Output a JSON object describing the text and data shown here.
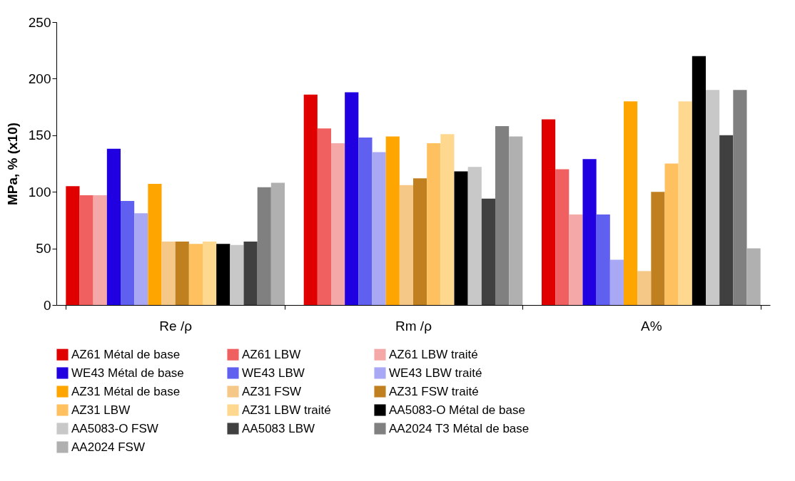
{
  "chart_data": {
    "type": "bar",
    "ylabel": "MPa, % (x10)",
    "categories": [
      "Re /ρ",
      "Rm /ρ",
      "A%"
    ],
    "ylim": [
      0,
      250
    ],
    "yticks": [
      0,
      50,
      100,
      150,
      200,
      250
    ],
    "grid": false,
    "legend": "bottom",
    "series": [
      {
        "name": "AZ61 Métal de base",
        "color": "#e00000",
        "values": [
          105,
          186,
          164
        ]
      },
      {
        "name": "AZ61 LBW",
        "color": "#f06060",
        "values": [
          97,
          156,
          120
        ]
      },
      {
        "name": "AZ61 LBW traité",
        "color": "#f4a8a8",
        "values": [
          97,
          143,
          80
        ]
      },
      {
        "name": "WE43 Métal de base",
        "color": "#2000e0",
        "values": [
          138,
          188,
          129
        ]
      },
      {
        "name": "WE43 LBW",
        "color": "#6060f0",
        "values": [
          92,
          148,
          80
        ]
      },
      {
        "name": "WE43 LBW traité",
        "color": "#a8a8f4",
        "values": [
          81,
          135,
          40
        ]
      },
      {
        "name": "AZ31 Métal de base",
        "color": "#ffa500",
        "values": [
          107,
          149,
          180
        ]
      },
      {
        "name": "AZ31 FSW",
        "color": "#f5c888",
        "values": [
          56,
          106,
          30
        ]
      },
      {
        "name": "AZ31 FSW traité",
        "color": "#c08020",
        "values": [
          56,
          112,
          100
        ]
      },
      {
        "name": "AZ31 LBW",
        "color": "#ffc060",
        "values": [
          54,
          143,
          125
        ]
      },
      {
        "name": "AZ31 LBW traité",
        "color": "#ffd890",
        "values": [
          56,
          151,
          180
        ]
      },
      {
        "name": "AA5083-O Métal de base",
        "color": "#000000",
        "values": [
          54,
          118,
          220
        ]
      },
      {
        "name": "AA5083-O FSW",
        "color": "#c8c8c8",
        "values": [
          53,
          122,
          190
        ]
      },
      {
        "name": "AA5083 LBW",
        "color": "#404040",
        "values": [
          56,
          94,
          150
        ]
      },
      {
        "name": "AA2024 T3 Métal de base",
        "color": "#808080",
        "values": [
          104,
          158,
          190
        ]
      },
      {
        "name": "AA2024 FSW",
        "color": "#b0b0b0",
        "values": [
          108,
          149,
          50
        ]
      }
    ]
  }
}
